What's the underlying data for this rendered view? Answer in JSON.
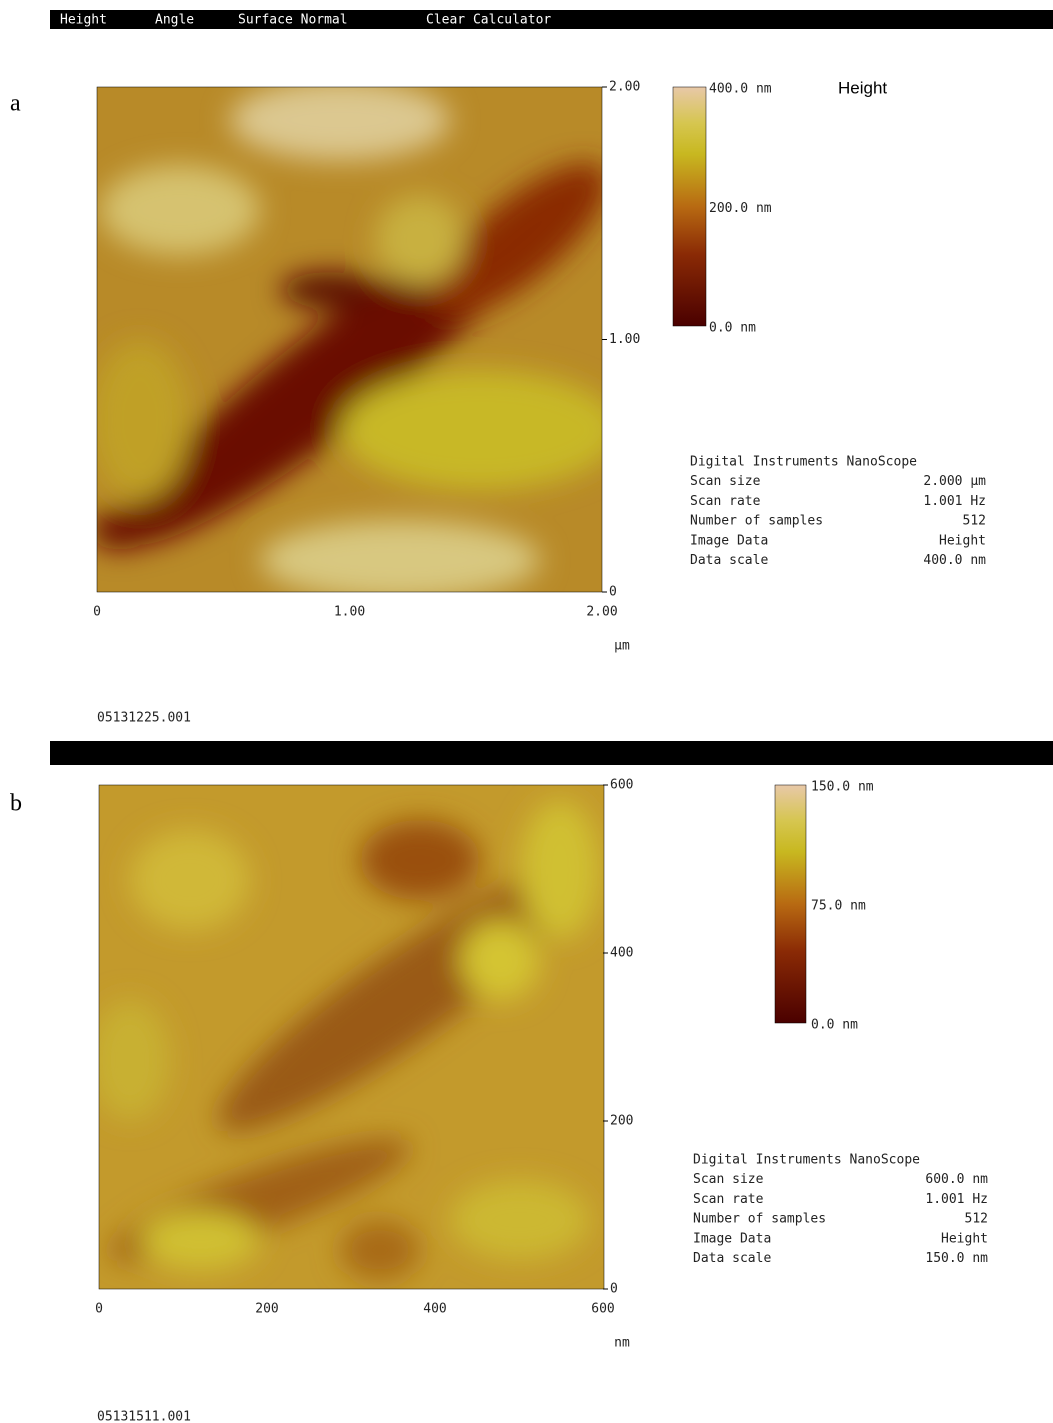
{
  "menu": [
    "Height",
    "Angle",
    "Surface Normal",
    "Clear Calculator"
  ],
  "panels": [
    {
      "label": "a",
      "right_ticks": [
        "2.00",
        "1.00",
        "0"
      ],
      "bottom_ticks": [
        "0",
        "1.00",
        "2.00"
      ],
      "unit": "µm",
      "colorbar_labels": [
        "400.0 nm",
        "200.0 nm",
        "0.0 nm"
      ],
      "channel": "Height",
      "info_header": "Digital Instruments NanoScope",
      "info": [
        [
          "Scan size",
          "2.000 µm"
        ],
        [
          "Scan rate",
          "1.001 Hz"
        ],
        [
          "Number of samples",
          "512"
        ],
        [
          "Image Data",
          "Height"
        ],
        [
          "Data scale",
          "400.0 nm"
        ]
      ],
      "file": "05131225.001"
    },
    {
      "label": "b",
      "right_ticks": [
        "600",
        "400",
        "200",
        "0"
      ],
      "bottom_ticks": [
        "0",
        "200",
        "400",
        "600"
      ],
      "unit": "nm",
      "colorbar_labels": [
        "150.0 nm",
        "75.0 nm",
        "0.0 nm"
      ],
      "info_header": "Digital Instruments NanoScope",
      "info": [
        [
          "Scan size",
          "600.0 nm"
        ],
        [
          "Scan rate",
          "1.001 Hz"
        ],
        [
          "Number of samples",
          "512"
        ],
        [
          "Image Data",
          "Height"
        ],
        [
          "Data scale",
          "150.0 nm"
        ]
      ],
      "file": "05131511.001"
    }
  ]
}
